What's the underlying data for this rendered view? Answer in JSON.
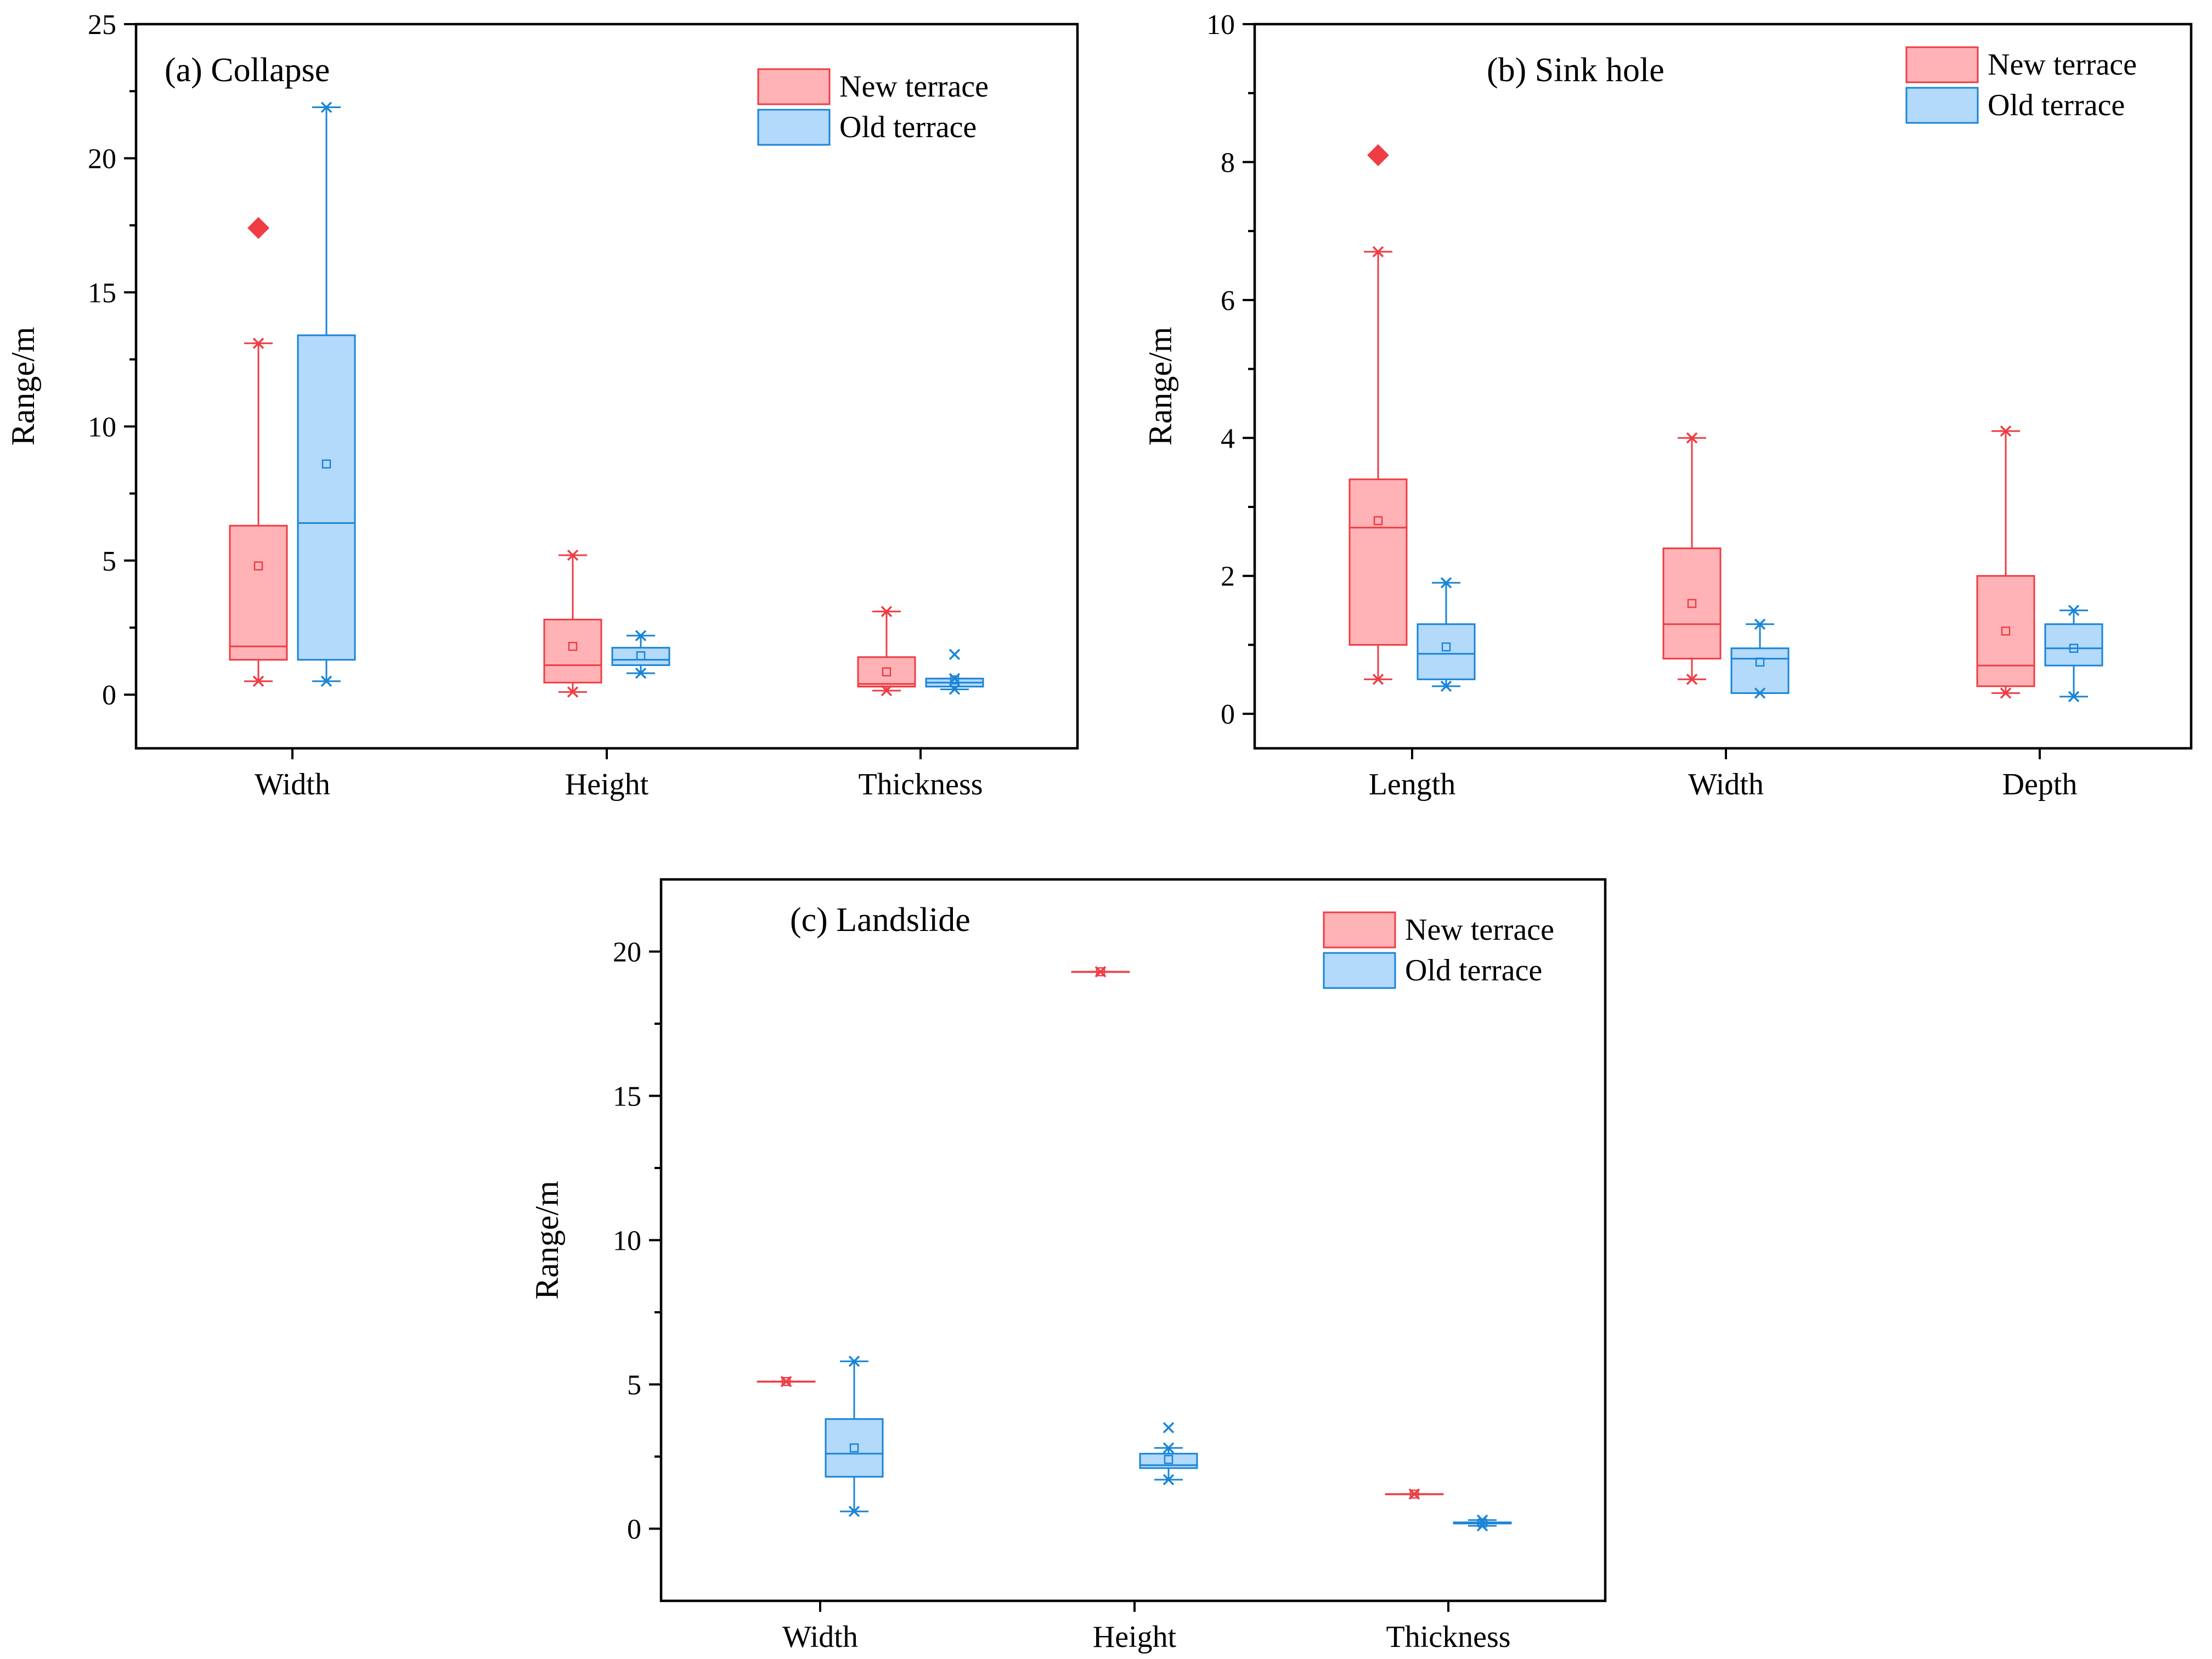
{
  "colors": {
    "new_fill": "#ffb3b6",
    "new_stroke": "#ee3d44",
    "old_fill": "#b3d9fb",
    "old_stroke": "#1a85d6",
    "outlier_new": "#ee3d44"
  },
  "chart_data": [
    {
      "type": "box",
      "title": "(a) Collapse",
      "ylabel": "Range/m",
      "ylim": [
        -2,
        25
      ],
      "yticks": [
        0,
        5,
        10,
        15,
        20,
        25
      ],
      "categories": [
        "Width",
        "Height",
        "Thickness"
      ],
      "legend": [
        "New terrace",
        "Old terrace"
      ],
      "series": [
        {
          "name": "New terrace",
          "boxes": [
            {
              "min": 0.5,
              "q1": 1.3,
              "median": 1.8,
              "q3": 6.3,
              "max": 13.1,
              "mean": 4.8,
              "outliers": [
                17.4
              ]
            },
            {
              "min": 0.1,
              "q1": 0.45,
              "median": 1.1,
              "q3": 2.8,
              "max": 5.2,
              "mean": 1.8,
              "outliers": []
            },
            {
              "min": 0.15,
              "q1": 0.3,
              "median": 0.4,
              "q3": 1.4,
              "max": 3.1,
              "mean": 0.85,
              "outliers": []
            }
          ]
        },
        {
          "name": "Old terrace",
          "boxes": [
            {
              "min": 0.5,
              "q1": 1.3,
              "median": 6.4,
              "q3": 13.4,
              "max": 21.9,
              "mean": 8.6,
              "outliers": []
            },
            {
              "min": 0.8,
              "q1": 1.1,
              "median": 1.3,
              "q3": 1.75,
              "max": 2.2,
              "mean": 1.45,
              "outliers": []
            },
            {
              "min": 0.2,
              "q1": 0.3,
              "median": 0.45,
              "q3": 0.6,
              "max": 0.6,
              "mean": 0.55,
              "outliers": [
                1.5
              ]
            }
          ]
        }
      ]
    },
    {
      "type": "box",
      "title": "(b) Sink hole",
      "ylabel": "Range/m",
      "ylim": [
        -0.5,
        10
      ],
      "yticks": [
        0,
        2,
        4,
        6,
        8,
        10
      ],
      "categories": [
        "Length",
        "Width",
        "Depth"
      ],
      "legend": [
        "New terrace",
        "Old terrace"
      ],
      "series": [
        {
          "name": "New terrace",
          "boxes": [
            {
              "min": 0.5,
              "q1": 1.0,
              "median": 2.7,
              "q3": 3.4,
              "max": 6.7,
              "mean": 2.8,
              "outliers": [
                8.1
              ]
            },
            {
              "min": 0.5,
              "q1": 0.8,
              "median": 1.3,
              "q3": 2.4,
              "max": 4.0,
              "mean": 1.6,
              "outliers": []
            },
            {
              "min": 0.3,
              "q1": 0.4,
              "median": 0.7,
              "q3": 2.0,
              "max": 4.1,
              "mean": 1.2,
              "outliers": []
            }
          ]
        },
        {
          "name": "Old terrace",
          "boxes": [
            {
              "min": 0.4,
              "q1": 0.5,
              "median": 0.87,
              "q3": 1.3,
              "max": 1.9,
              "mean": 0.97,
              "outliers": []
            },
            {
              "min": 0.3,
              "q1": 0.3,
              "median": 0.8,
              "q3": 0.95,
              "max": 1.3,
              "mean": 0.75,
              "outliers": []
            },
            {
              "min": 0.25,
              "q1": 0.7,
              "median": 0.95,
              "q3": 1.3,
              "max": 1.5,
              "mean": 0.95,
              "outliers": []
            }
          ]
        }
      ]
    },
    {
      "type": "box",
      "title": "(c) Landslide",
      "ylabel": "Range/m",
      "ylim": [
        -2.5,
        22.5
      ],
      "yticks": [
        0,
        5,
        10,
        15,
        20
      ],
      "categories": [
        "Width",
        "Height",
        "Thickness"
      ],
      "legend": [
        "New terrace",
        "Old terrace"
      ],
      "series": [
        {
          "name": "New terrace",
          "boxes": [
            {
              "min": 5.1,
              "q1": 5.1,
              "median": 5.1,
              "q3": 5.1,
              "max": 5.1,
              "mean": 5.1,
              "outliers": []
            },
            {
              "min": 19.3,
              "q1": 19.3,
              "median": 19.3,
              "q3": 19.3,
              "max": 19.3,
              "mean": 19.3,
              "outliers": []
            },
            {
              "min": 1.2,
              "q1": 1.2,
              "median": 1.2,
              "q3": 1.2,
              "max": 1.2,
              "mean": 1.2,
              "outliers": []
            }
          ]
        },
        {
          "name": "Old terrace",
          "boxes": [
            {
              "min": 0.6,
              "q1": 1.8,
              "median": 2.6,
              "q3": 3.8,
              "max": 5.8,
              "mean": 2.8,
              "outliers": []
            },
            {
              "min": 1.7,
              "q1": 2.1,
              "median": 2.2,
              "q3": 2.6,
              "max": 2.8,
              "mean": 2.4,
              "outliers": [
                3.5
              ]
            },
            {
              "min": 0.1,
              "q1": 0.18,
              "median": 0.2,
              "q3": 0.22,
              "max": 0.3,
              "mean": 0.2,
              "outliers": []
            }
          ]
        }
      ]
    }
  ]
}
